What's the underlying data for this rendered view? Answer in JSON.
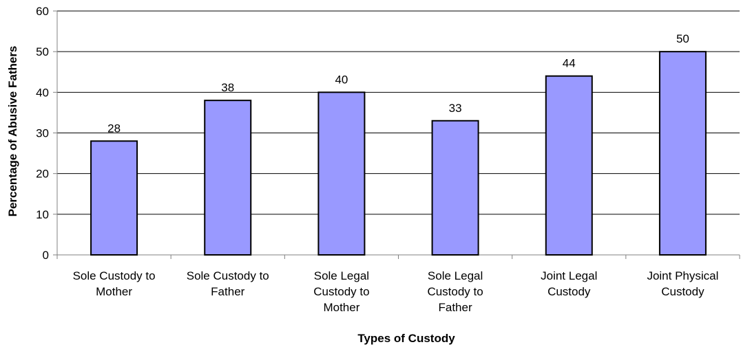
{
  "chart_data": {
    "type": "bar",
    "categories": [
      [
        "Sole Custody to",
        "Mother"
      ],
      [
        "Sole Custody to",
        "Father"
      ],
      [
        "Sole Legal",
        "Custody to",
        "Mother"
      ],
      [
        "Sole Legal",
        "Custody to",
        "Father"
      ],
      [
        "Joint Legal",
        "Custody"
      ],
      [
        "Joint Physical",
        "Custody"
      ]
    ],
    "values": [
      28,
      38,
      40,
      33,
      44,
      50
    ],
    "data_labels": [
      "28",
      "38",
      "40",
      "33",
      "44",
      "50"
    ],
    "title": "",
    "xlabel": "Types of Custody",
    "ylabel": "Percentage of Abusive Fathers",
    "ylim": [
      0,
      60
    ],
    "yticks": [
      0,
      10,
      20,
      30,
      40,
      50,
      60
    ],
    "grid": true,
    "legend": "none",
    "colors": {
      "bar_fill": "#9999ff",
      "bar_stroke": "#000000",
      "grid": "#000000",
      "axis": "#808080"
    }
  }
}
